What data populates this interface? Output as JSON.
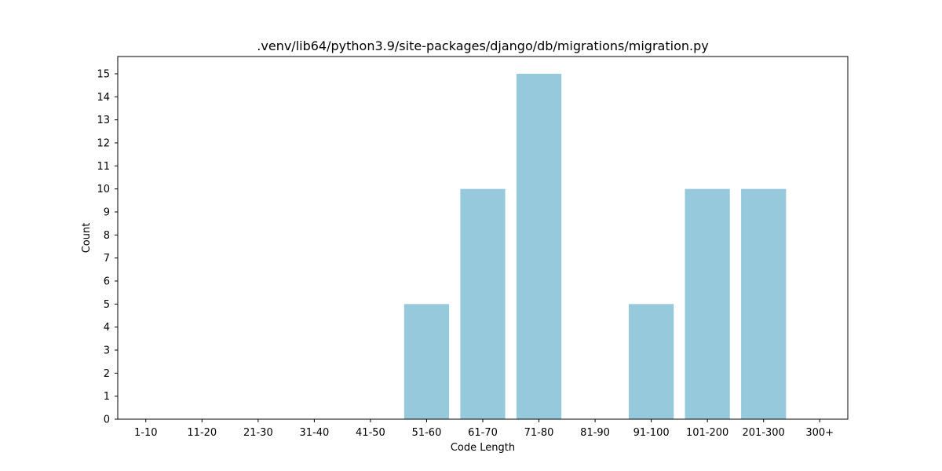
{
  "chart_data": {
    "type": "bar",
    "title": ".venv/lib64/python3.9/site-packages/django/db/migrations/migration.py",
    "xlabel": "Code Length",
    "ylabel": "Count",
    "categories": [
      "1-10",
      "11-20",
      "21-30",
      "31-40",
      "41-50",
      "51-60",
      "61-70",
      "71-80",
      "81-90",
      "91-100",
      "101-200",
      "201-300",
      "300+"
    ],
    "values": [
      0,
      0,
      0,
      0,
      0,
      5,
      10,
      15,
      0,
      5,
      10,
      10,
      0
    ],
    "ylim": [
      0,
      15.75
    ],
    "yticks": [
      0,
      1,
      2,
      3,
      4,
      5,
      6,
      7,
      8,
      9,
      10,
      11,
      12,
      13,
      14,
      15
    ],
    "bar_color": "#96c9dc",
    "grid": false,
    "legend": "none"
  }
}
